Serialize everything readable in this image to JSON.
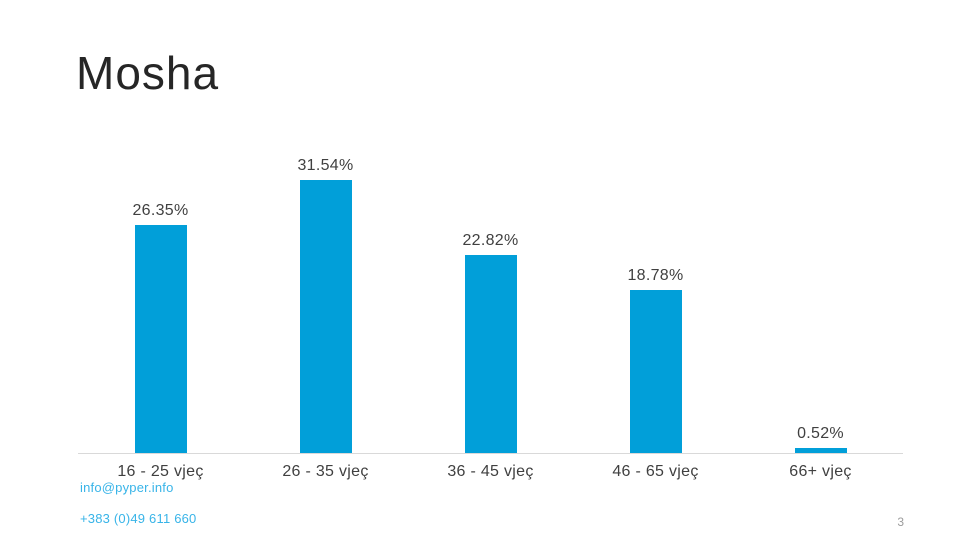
{
  "slide": {
    "title": "Mosha",
    "page_number": "3",
    "footer": {
      "email": "info@pyper.info",
      "phone": "+383 (0)49 611 660"
    }
  },
  "chart_data": {
    "type": "bar",
    "categories": [
      "16 - 25 vjeç",
      "26 - 35 vjeç",
      "36 - 45 vjeç",
      "46 - 65 vjeç",
      "66+ vjeç"
    ],
    "values": [
      26.35,
      31.54,
      22.82,
      18.78,
      0.52
    ],
    "data_labels": [
      "26.35%",
      "31.54%",
      "22.82%",
      "18.78%",
      "0.52%"
    ],
    "title": "",
    "xlabel": "",
    "ylabel": "",
    "ylim": [
      0,
      35
    ],
    "grid": false,
    "legend": "none",
    "bar_color": "#019FD9",
    "axis_line_color": "#D9D9D9",
    "label_color": "#404040"
  },
  "colors": {
    "accent_blue": "#019FD9",
    "footer_link_blue": "#38B4E8",
    "title_color": "#262626",
    "page_number_gray": "#9C9C9C"
  }
}
